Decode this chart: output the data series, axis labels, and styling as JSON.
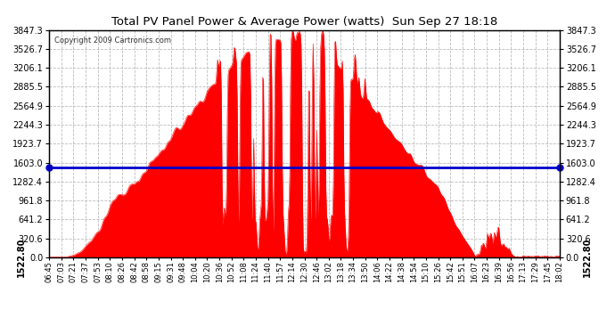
{
  "title": "Total PV Panel Power & Average Power (watts)  Sun Sep 27 18:18",
  "copyright": "Copyright 2009 Cartronics.com",
  "avg_value": 1522.8,
  "y_max": 3847.3,
  "y_min": 0.0,
  "y_ticks": [
    0.0,
    320.6,
    641.2,
    961.8,
    1282.4,
    1603.0,
    1923.7,
    2244.3,
    2564.9,
    2885.5,
    3206.1,
    3526.7,
    3847.3
  ],
  "fill_color": "#FF0000",
  "line_color": "#FF0000",
  "avg_line_color": "#0000CC",
  "background_color": "#FFFFFF",
  "grid_color": "#AAAAAA",
  "title_color": "#000000",
  "avg_label": "1522.80",
  "x_times": [
    "06:45",
    "07:03",
    "07:21",
    "07:37",
    "07:53",
    "08:10",
    "08:26",
    "08:42",
    "08:58",
    "09:15",
    "09:31",
    "09:48",
    "10:04",
    "10:20",
    "10:36",
    "10:52",
    "11:08",
    "11:24",
    "11:40",
    "11:57",
    "12:14",
    "12:30",
    "12:46",
    "13:02",
    "13:18",
    "13:34",
    "13:50",
    "14:06",
    "14:22",
    "14:38",
    "14:54",
    "15:10",
    "15:26",
    "15:42",
    "15:51",
    "16:07",
    "16:23",
    "16:39",
    "16:56",
    "17:13",
    "17:29",
    "17:45",
    "18:02"
  ],
  "figsize": [
    6.9,
    3.75
  ],
  "dpi": 100
}
